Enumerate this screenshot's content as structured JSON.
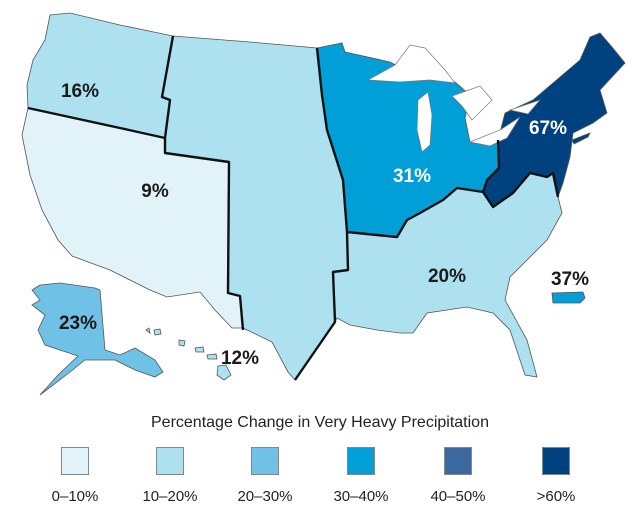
{
  "legend": {
    "title": "Percentage Change in Very Heavy Precipitation",
    "bins": [
      {
        "label": "0–10%",
        "color": "#e1f3f9"
      },
      {
        "label": "10–20%",
        "color": "#ade1ef"
      },
      {
        "label": "20–30%",
        "color": "#6fc1e6"
      },
      {
        "label": "30–40%",
        "color": "#009fd7"
      },
      {
        "label": "40–50%",
        "color": "#3c6aa0"
      },
      {
        "label": ">60%",
        "color": "#00427f"
      }
    ]
  },
  "regions": [
    {
      "id": "northwest",
      "value": "16%",
      "bin": 1
    },
    {
      "id": "southwest",
      "value": "9%",
      "bin": 0
    },
    {
      "id": "great-plains",
      "value": "12%",
      "bin": 1
    },
    {
      "id": "midwest",
      "value": "31%",
      "bin": 3
    },
    {
      "id": "northeast",
      "value": "67%",
      "bin": 5
    },
    {
      "id": "southeast",
      "value": "20%",
      "bin": 1
    },
    {
      "id": "alaska",
      "value": "23%",
      "bin": 2
    },
    {
      "id": "hawaii",
      "bin": 1
    },
    {
      "id": "puerto-rico",
      "value": "37%",
      "bin": 3
    }
  ]
}
